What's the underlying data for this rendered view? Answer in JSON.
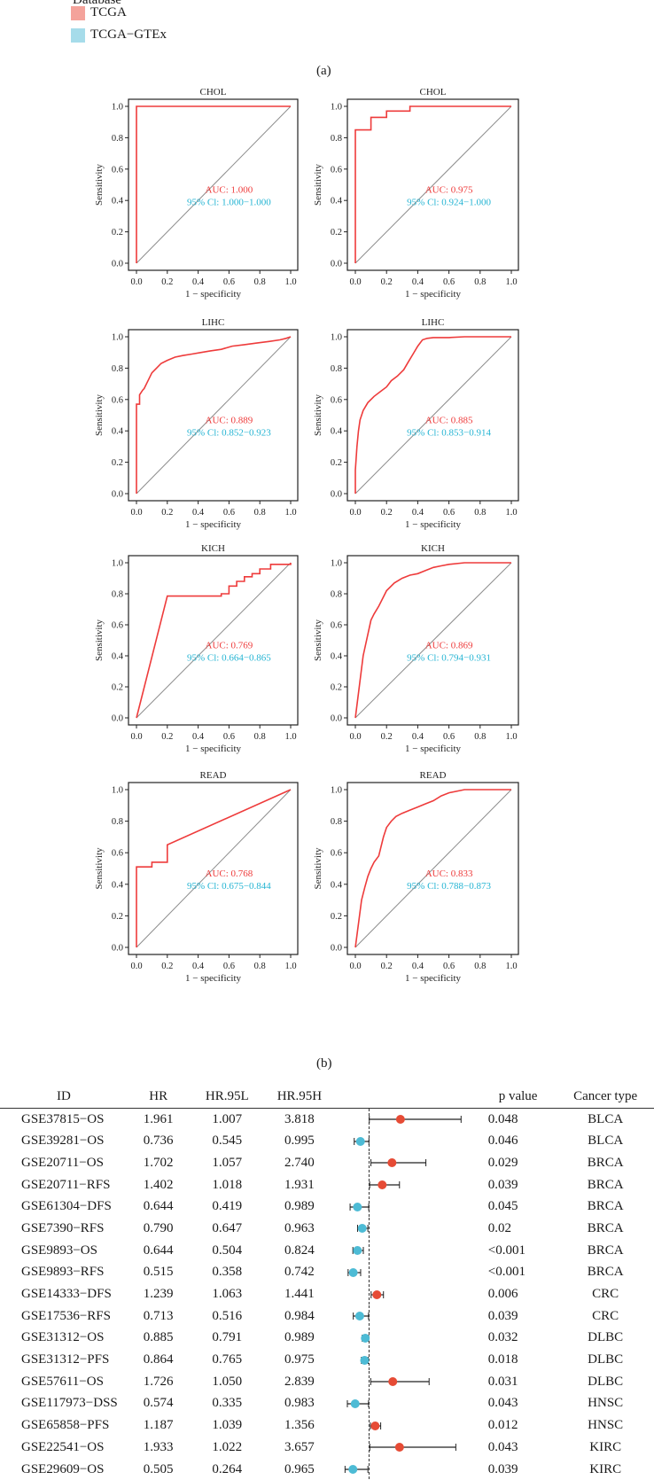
{
  "legend": {
    "title": "Database",
    "items": [
      {
        "label": "TCGA",
        "color": "#f4a39b"
      },
      {
        "label": "TCGA−GTEx",
        "color": "#a6dcea"
      }
    ]
  },
  "panel_labels": {
    "a": "(a)",
    "b": "(b)"
  },
  "colors": {
    "curve": "#ee3b3b",
    "diagonal": "#8c8c8c",
    "auc_text": "#ee3b3b",
    "ci_text": "#24b4d3",
    "hr_high": "#e64b35",
    "hr_low": "#4dbbd5"
  },
  "roc": {
    "axis_labels": {
      "x": "1 − specificity",
      "y": "Sensitivity"
    },
    "ticks": [
      "0.0",
      "0.2",
      "0.4",
      "0.6",
      "0.8",
      "1.0"
    ]
  },
  "chart_data": [
    {
      "type": "line",
      "title": "CHOL",
      "xlabel": "1 − specificity",
      "ylabel": "Sensitivity",
      "xlim": [
        0,
        1
      ],
      "ylim": [
        0,
        1
      ],
      "auc": "AUC: 1.000",
      "ci": "95% Cl: 1.000−1.000",
      "x": [
        0,
        0,
        1
      ],
      "y": [
        0,
        1,
        1
      ]
    },
    {
      "type": "line",
      "title": "CHOL",
      "xlabel": "1 − specificity",
      "ylabel": "Sensitivity",
      "xlim": [
        0,
        1
      ],
      "ylim": [
        0,
        1
      ],
      "auc": "AUC: 0.975",
      "ci": "95% Cl: 0.924−1.000",
      "x": [
        0,
        0,
        0.1,
        0.1,
        0.2,
        0.2,
        0.35,
        0.35,
        1
      ],
      "y": [
        0,
        0.85,
        0.85,
        0.93,
        0.93,
        0.97,
        0.97,
        1,
        1
      ]
    },
    {
      "type": "line",
      "title": "LIHC",
      "xlabel": "1 − specificity",
      "ylabel": "Sensitivity",
      "xlim": [
        0,
        1
      ],
      "ylim": [
        0,
        1
      ],
      "auc": "AUC: 0.889",
      "ci": "95% Cl: 0.852−0.923",
      "x": [
        0,
        0,
        0.02,
        0.02,
        0.04,
        0.05,
        0.08,
        0.1,
        0.13,
        0.16,
        0.2,
        0.25,
        0.3,
        0.36,
        0.42,
        0.48,
        0.55,
        0.62,
        0.7,
        0.78,
        0.86,
        0.93,
        0.97,
        1
      ],
      "y": [
        0,
        0.57,
        0.57,
        0.63,
        0.66,
        0.67,
        0.73,
        0.77,
        0.8,
        0.83,
        0.85,
        0.87,
        0.88,
        0.89,
        0.9,
        0.91,
        0.92,
        0.94,
        0.95,
        0.96,
        0.97,
        0.98,
        0.99,
        1
      ]
    },
    {
      "type": "line",
      "title": "LIHC",
      "xlabel": "1 − specificity",
      "ylabel": "Sensitivity",
      "xlim": [
        0,
        1
      ],
      "ylim": [
        0,
        1
      ],
      "auc": "AUC: 0.885",
      "ci": "95% Cl: 0.853−0.914",
      "x": [
        0,
        0,
        0.01,
        0.02,
        0.03,
        0.05,
        0.08,
        0.12,
        0.16,
        0.2,
        0.23,
        0.27,
        0.31,
        0.34,
        0.37,
        0.4,
        0.43,
        0.46,
        0.5,
        0.6,
        0.7,
        0.8,
        0.9,
        1
      ],
      "y": [
        0,
        0.15,
        0.3,
        0.4,
        0.47,
        0.53,
        0.58,
        0.62,
        0.65,
        0.68,
        0.72,
        0.75,
        0.79,
        0.84,
        0.89,
        0.94,
        0.98,
        0.99,
        0.995,
        0.995,
        1,
        1,
        1,
        1
      ]
    },
    {
      "type": "line",
      "title": "KICH",
      "xlabel": "1 − specificity",
      "ylabel": "Sensitivity",
      "xlim": [
        0,
        1
      ],
      "ylim": [
        0,
        1
      ],
      "auc": "AUC: 0.769",
      "ci": "95% Cl: 0.664−0.865",
      "x": [
        0,
        0.2,
        0.55,
        0.55,
        0.6,
        0.6,
        0.65,
        0.65,
        0.7,
        0.7,
        0.75,
        0.75,
        0.8,
        0.8,
        0.87,
        0.87,
        1,
        1
      ],
      "y": [
        0,
        0.785,
        0.785,
        0.8,
        0.8,
        0.85,
        0.85,
        0.88,
        0.88,
        0.91,
        0.91,
        0.93,
        0.93,
        0.96,
        0.96,
        0.99,
        0.99,
        1
      ]
    },
    {
      "type": "line",
      "title": "KICH",
      "xlabel": "1 − specificity",
      "ylabel": "Sensitivity",
      "xlim": [
        0,
        1
      ],
      "ylim": [
        0,
        1
      ],
      "auc": "AUC: 0.869",
      "ci": "95% Cl: 0.794−0.931",
      "x": [
        0,
        0.05,
        0.1,
        0.12,
        0.15,
        0.18,
        0.2,
        0.25,
        0.3,
        0.35,
        0.4,
        0.45,
        0.5,
        0.55,
        0.6,
        0.7,
        0.8,
        0.9,
        1
      ],
      "y": [
        0,
        0.4,
        0.63,
        0.67,
        0.72,
        0.78,
        0.82,
        0.87,
        0.9,
        0.92,
        0.93,
        0.95,
        0.97,
        0.98,
        0.99,
        1,
        1,
        1,
        1
      ]
    },
    {
      "type": "line",
      "title": "READ",
      "xlabel": "1 − specificity",
      "ylabel": "Sensitivity",
      "xlim": [
        0,
        1
      ],
      "ylim": [
        0,
        1
      ],
      "auc": "AUC: 0.768",
      "ci": "95% Cl: 0.675−0.844",
      "x": [
        0,
        0,
        0.1,
        0.1,
        0.2,
        0.2,
        1
      ],
      "y": [
        0,
        0.51,
        0.51,
        0.54,
        0.54,
        0.65,
        1
      ]
    },
    {
      "type": "line",
      "title": "READ",
      "xlabel": "1 − specificity",
      "ylabel": "Sensitivity",
      "xlim": [
        0,
        1
      ],
      "ylim": [
        0,
        1
      ],
      "auc": "AUC: 0.833",
      "ci": "95% Cl: 0.788−0.873",
      "x": [
        0,
        0.02,
        0.04,
        0.06,
        0.08,
        0.1,
        0.12,
        0.15,
        0.18,
        0.2,
        0.23,
        0.26,
        0.3,
        0.35,
        0.4,
        0.45,
        0.5,
        0.55,
        0.6,
        0.7,
        0.8,
        1
      ],
      "y": [
        0,
        0.15,
        0.3,
        0.38,
        0.45,
        0.5,
        0.54,
        0.58,
        0.7,
        0.76,
        0.8,
        0.83,
        0.85,
        0.87,
        0.89,
        0.91,
        0.93,
        0.96,
        0.98,
        1,
        1,
        1
      ]
    },
    {
      "type": "scatter",
      "title": "",
      "xlabel": "",
      "ylabel": "",
      "reference_line": 1,
      "columns": [
        "ID",
        "HR",
        "HR.95L",
        "HR.95H",
        "p  value",
        "Cancer type"
      ],
      "rows": [
        {
          "id": "GSE37815−OS",
          "hr": "1.961",
          "low": "1.007",
          "high": "3.818",
          "p": "0.048",
          "type": "BLCA"
        },
        {
          "id": "GSE39281−OS",
          "hr": "0.736",
          "low": "0.545",
          "high": "0.995",
          "p": "0.046",
          "type": "BLCA"
        },
        {
          "id": "GSE20711−OS",
          "hr": "1.702",
          "low": "1.057",
          "high": "2.740",
          "p": "0.029",
          "type": "BRCA"
        },
        {
          "id": "GSE20711−RFS",
          "hr": "1.402",
          "low": "1.018",
          "high": "1.931",
          "p": "0.039",
          "type": "BRCA"
        },
        {
          "id": "GSE61304−DFS",
          "hr": "0.644",
          "low": "0.419",
          "high": "0.989",
          "p": "0.045",
          "type": "BRCA"
        },
        {
          "id": "GSE7390−RFS",
          "hr": "0.790",
          "low": "0.647",
          "high": "0.963",
          "p": "0.02",
          "type": "BRCA"
        },
        {
          "id": "GSE9893−OS",
          "hr": "0.644",
          "low": "0.504",
          "high": "0.824",
          "p": "<0.001",
          "type": "BRCA"
        },
        {
          "id": "GSE9893−RFS",
          "hr": "0.515",
          "low": "0.358",
          "high": "0.742",
          "p": "<0.001",
          "type": "BRCA"
        },
        {
          "id": "GSE14333−DFS",
          "hr": "1.239",
          "low": "1.063",
          "high": "1.441",
          "p": "0.006",
          "type": "CRC"
        },
        {
          "id": "GSE17536−RFS",
          "hr": "0.713",
          "low": "0.516",
          "high": "0.984",
          "p": "0.039",
          "type": "CRC"
        },
        {
          "id": "GSE31312−OS",
          "hr": "0.885",
          "low": "0.791",
          "high": "0.989",
          "p": "0.032",
          "type": "DLBC"
        },
        {
          "id": "GSE31312−PFS",
          "hr": "0.864",
          "low": "0.765",
          "high": "0.975",
          "p": "0.018",
          "type": "DLBC"
        },
        {
          "id": "GSE57611−OS",
          "hr": "1.726",
          "low": "1.050",
          "high": "2.839",
          "p": "0.031",
          "type": "DLBC"
        },
        {
          "id": "GSE117973−DSS",
          "hr": "0.574",
          "low": "0.335",
          "high": "0.983",
          "p": "0.043",
          "type": "HNSC"
        },
        {
          "id": "GSE65858−PFS",
          "hr": "1.187",
          "low": "1.039",
          "high": "1.356",
          "p": "0.012",
          "type": "HNSC"
        },
        {
          "id": "GSE22541−OS",
          "hr": "1.933",
          "low": "1.022",
          "high": "3.657",
          "p": "0.043",
          "type": "KIRC"
        },
        {
          "id": "GSE29609−OS",
          "hr": "0.505",
          "low": "0.264",
          "high": "0.965",
          "p": "0.039",
          "type": "KIRC"
        }
      ]
    }
  ]
}
